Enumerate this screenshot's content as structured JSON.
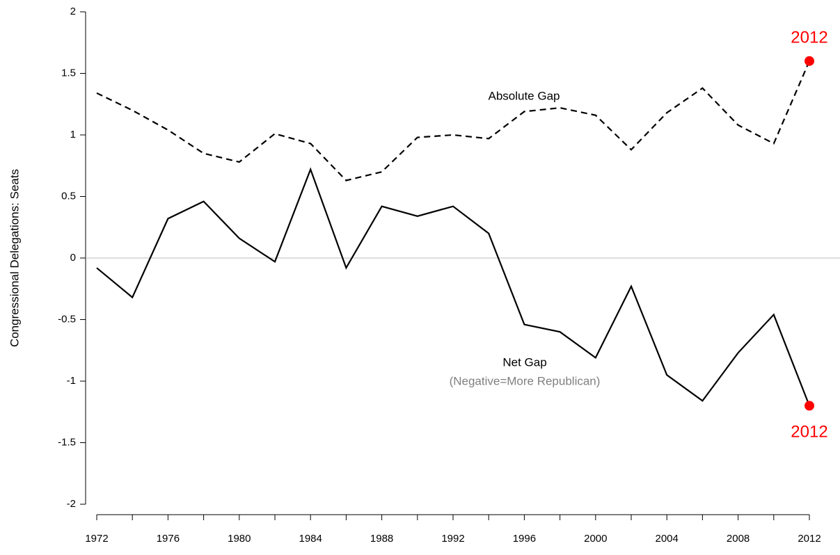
{
  "chart_data": {
    "type": "line",
    "ylabel": "Congressional Delegations: Seats",
    "categories": [
      "1972",
      null,
      "1976",
      null,
      "1980",
      null,
      "1984",
      null,
      "1988",
      null,
      "1992",
      null,
      "1996",
      null,
      "2000",
      null,
      "2004",
      null,
      "2008",
      null,
      "2012"
    ],
    "series": [
      {
        "name": "Absolute Gap",
        "color": "#000000",
        "dash": true,
        "values": [
          1.34,
          1.2,
          1.04,
          0.85,
          0.78,
          1.01,
          0.93,
          0.63,
          0.7,
          0.98,
          1.0,
          0.97,
          1.19,
          1.22,
          1.16,
          0.88,
          1.18,
          1.38,
          1.08,
          0.93,
          1.6
        ]
      },
      {
        "name": "Net Gap",
        "color": "#000000",
        "dash": false,
        "values": [
          -0.08,
          -0.32,
          0.32,
          0.46,
          0.16,
          -0.03,
          0.72,
          -0.08,
          0.42,
          0.34,
          0.42,
          0.2,
          -0.54,
          -0.6,
          -0.81,
          -0.23,
          -0.95,
          -1.16,
          -0.77,
          -0.46,
          -1.2
        ]
      }
    ],
    "annotations": [
      {
        "text": "(Negative=More Republican)",
        "color": "#808080"
      },
      {
        "text": "2012",
        "color": "#ff0000"
      },
      {
        "text": "2012",
        "color": "#ff0000"
      }
    ],
    "highlight_last_color": "#ff0000",
    "hline": 0,
    "ylim": [
      -2,
      2
    ],
    "yticks": [
      -2,
      -1.5,
      -1,
      -0.5,
      0,
      0.5,
      1,
      1.5,
      2
    ]
  }
}
